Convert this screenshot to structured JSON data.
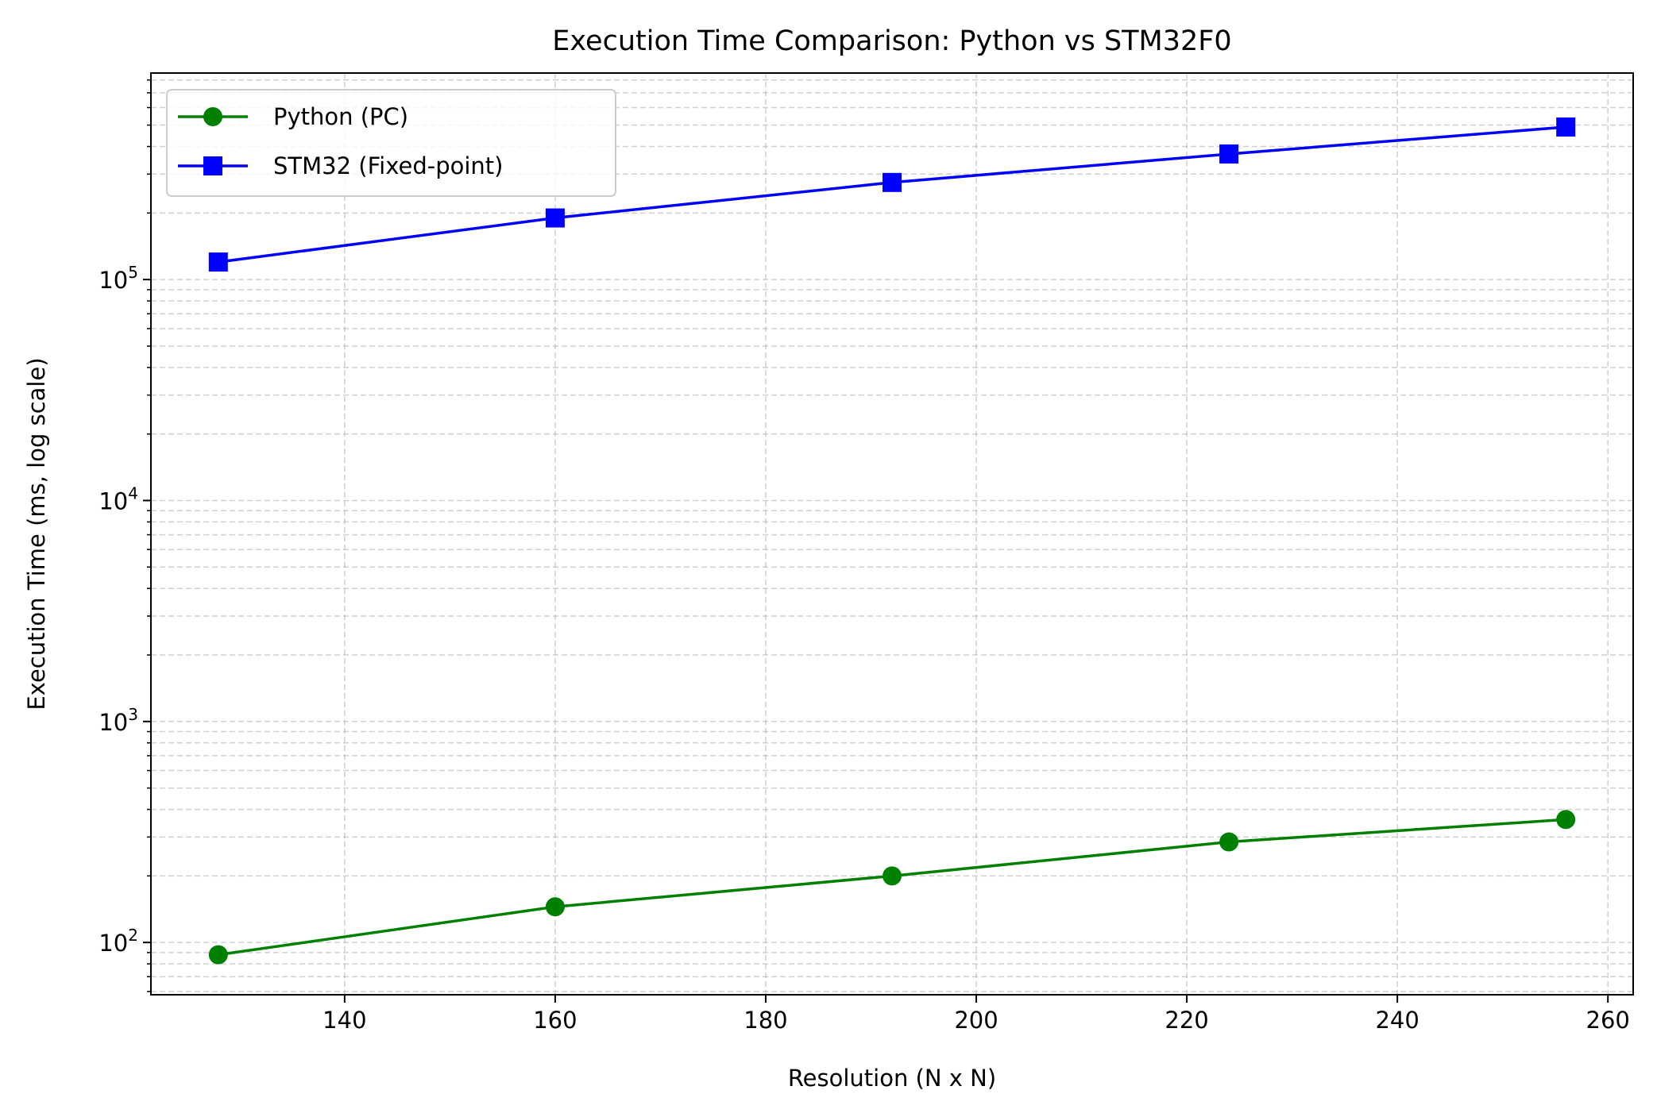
{
  "chart_data": {
    "type": "line",
    "title": "Execution Time Comparison: Python vs STM32F0",
    "xlabel": "Resolution (N x N)",
    "ylabel": "Execution Time (ms, log scale)",
    "yscale": "log",
    "xlim": [
      121.6,
      262.4
    ],
    "ylim": [
      58,
      860000
    ],
    "xticks": [
      140,
      160,
      180,
      200,
      220,
      240,
      260
    ],
    "yticks": [
      {
        "value": 100,
        "base": "10",
        "exp": "2"
      },
      {
        "value": 1000,
        "base": "10",
        "exp": "3"
      },
      {
        "value": 10000,
        "base": "10",
        "exp": "4"
      },
      {
        "value": 100000,
        "base": "10",
        "exp": "5"
      }
    ],
    "grid": true,
    "grid_style": "dashed",
    "legend_position": "top-left",
    "x": [
      128,
      160,
      192,
      224,
      256
    ],
    "series": [
      {
        "name": "Python (PC)",
        "values": [
          88,
          145,
          200,
          285,
          360
        ],
        "color": "#008000",
        "marker": "circle"
      },
      {
        "name": "STM32 (Fixed-point)",
        "values": [
          120000,
          190000,
          275000,
          370000,
          490000
        ],
        "color": "#0000ff",
        "marker": "square"
      }
    ]
  }
}
